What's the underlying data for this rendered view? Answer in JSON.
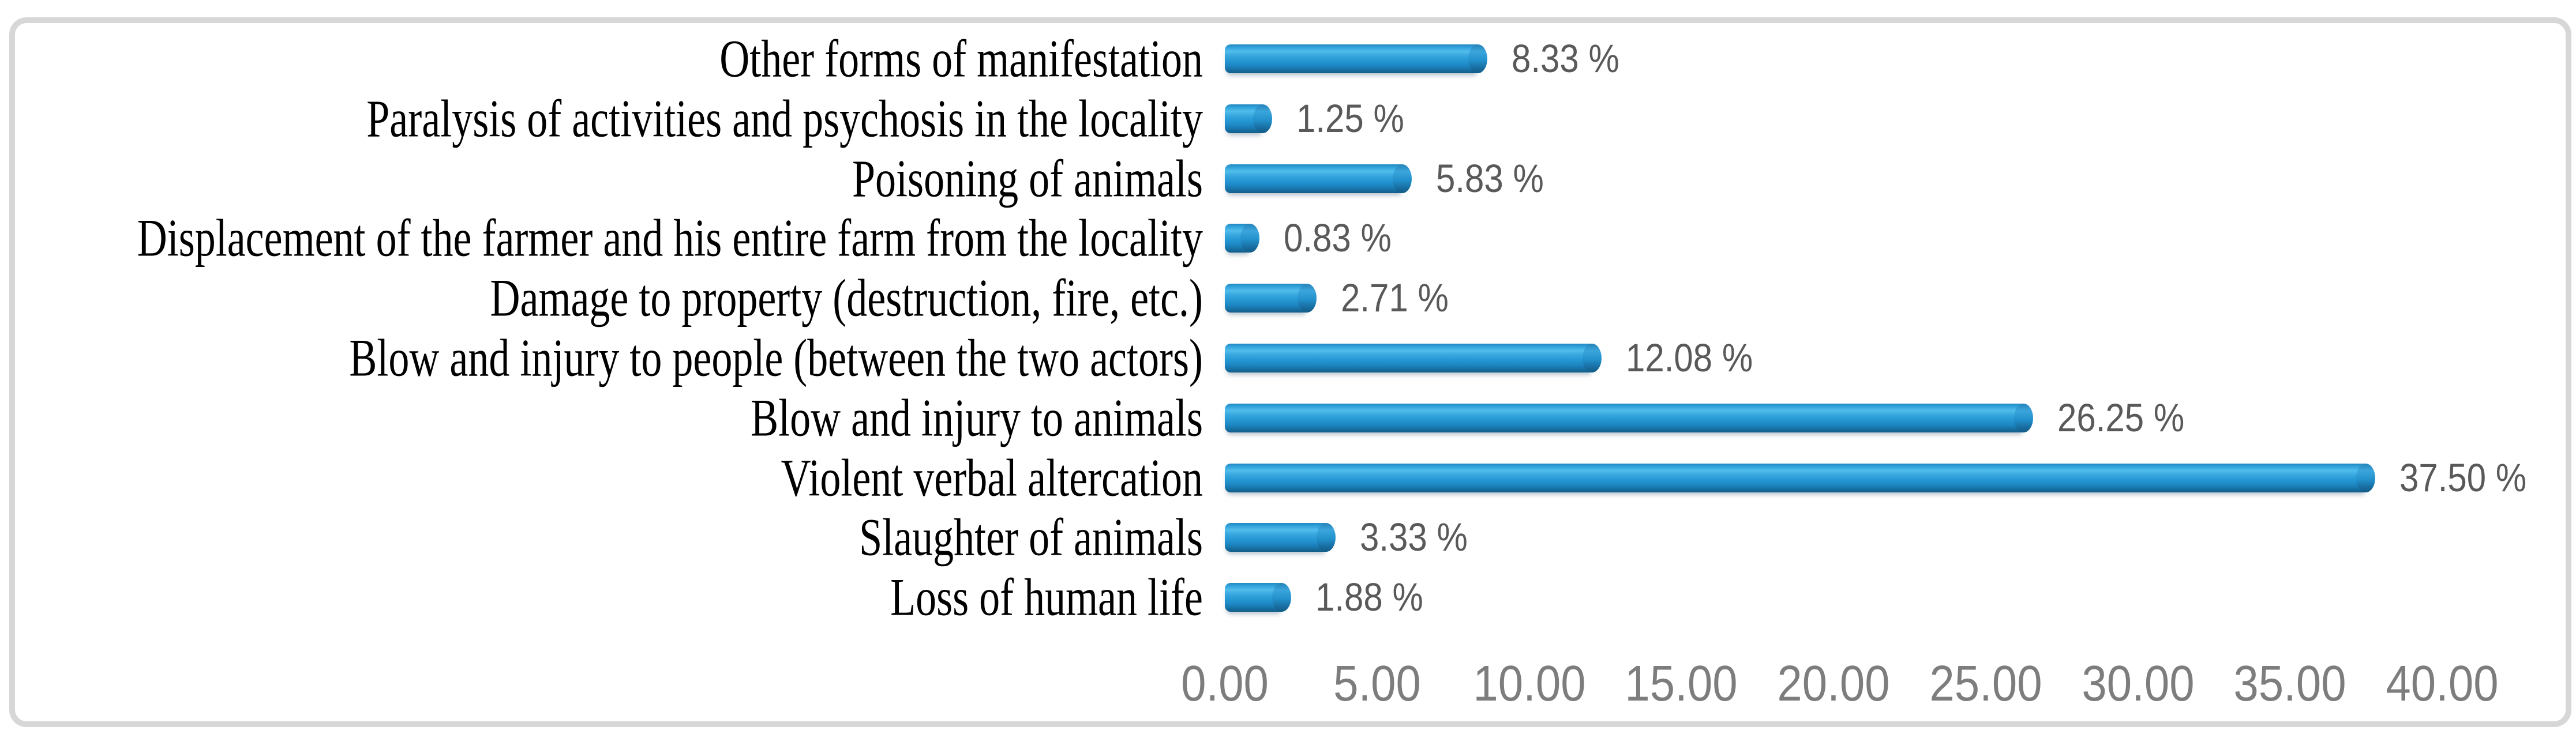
{
  "chart": {
    "description": "Horizontal 3D-cylinder bar chart of forms of farmer-herder conflict manifestation, percentages"
  },
  "chart_data": {
    "type": "bar",
    "orientation": "horizontal",
    "title": "",
    "xlabel": "",
    "ylabel": "",
    "grid": false,
    "legend": null,
    "xlim": [
      0,
      40
    ],
    "categories": [
      "Other forms of manifestation",
      "Paralysis of activities and psychosis in the locality",
      "Poisoning of animals",
      "Displacement of the farmer and his entire farm from the locality",
      "Damage to property (destruction, fire, etc.)",
      "Blow and injury to people (between the two actors)",
      "Blow and injury to animals",
      "Violent verbal altercation",
      "Slaughter of animals",
      "Loss of human life"
    ],
    "values": [
      8.33,
      1.25,
      5.83,
      0.83,
      2.71,
      12.08,
      26.25,
      37.5,
      3.33,
      1.88
    ],
    "value_labels": [
      "8.33 %",
      "1.25 %",
      "5.83 %",
      "0.83 %",
      "2.71 %",
      "12.08 %",
      "26.25 %",
      "37.50 %",
      "3.33 %",
      "1.88 %"
    ],
    "x_ticks": [
      {
        "value": 0,
        "label": "0.00"
      },
      {
        "value": 5,
        "label": "5.00"
      },
      {
        "value": 10,
        "label": "10.00"
      },
      {
        "value": 15,
        "label": "15.00"
      },
      {
        "value": 20,
        "label": "20.00"
      },
      {
        "value": 25,
        "label": "25.00"
      },
      {
        "value": 30,
        "label": "30.00"
      },
      {
        "value": 35,
        "label": "35.00"
      },
      {
        "value": 40,
        "label": "40.00"
      }
    ]
  },
  "colors": {
    "bar_main": "#2496d2",
    "bar_highlight": "#52bdec",
    "bar_dark": "#135d88",
    "value_label_gray": "#595959",
    "tick_label_gray": "#7d7d7d",
    "category_black": "#000000",
    "frame_gray": "#d7d7d7",
    "background": "#ffffff"
  }
}
